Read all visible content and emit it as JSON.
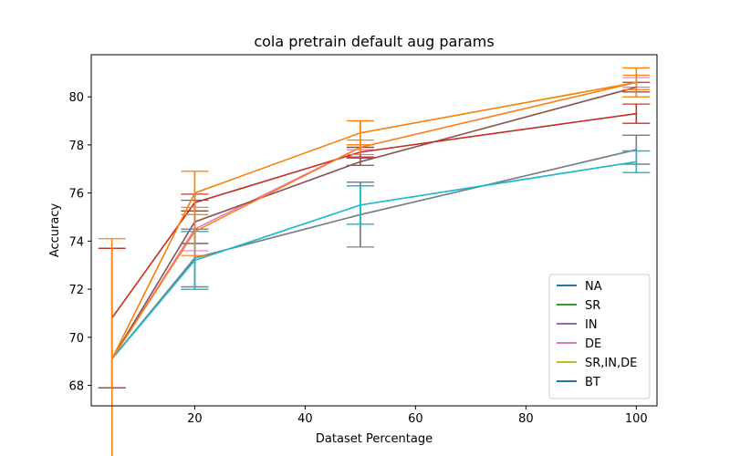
{
  "chart_data": {
    "type": "line",
    "title": "cola pretrain default aug params",
    "xlabel": "Dataset Percentage",
    "ylabel": "Accuracy",
    "xlim": [
      1.25,
      103.75
    ],
    "ylim": [
      67.15,
      81.75
    ],
    "xticks": [
      20,
      40,
      60,
      80,
      100
    ],
    "yticks": [
      68,
      70,
      72,
      74,
      76,
      78,
      80
    ],
    "legend_position": "lower-right",
    "grid": false,
    "x": [
      5,
      20,
      50,
      100
    ],
    "series": [
      {
        "name": "NA",
        "color": "#1f77b4",
        "legend": true,
        "values": [
          69.1,
          73.2,
          75.5,
          77.3
        ],
        "err": [
          0,
          1.2,
          0.8,
          0.45
        ]
      },
      {
        "name": "SR",
        "color": "#2ca02c",
        "legend": true,
        "values": [
          70.8,
          75.6,
          77.7,
          79.3
        ],
        "err": [
          2.9,
          0.35,
          0.2,
          0.4
        ]
      },
      {
        "name": "IN",
        "color": "#9467bd",
        "legend": true,
        "values": [
          69.1,
          74.8,
          77.3,
          80.4
        ],
        "err": [
          0,
          0.9,
          0.15,
          0.2
        ]
      },
      {
        "name": "DE",
        "color": "#e377c2",
        "legend": true,
        "values": [
          69.1,
          74.5,
          77.9,
          80.6
        ],
        "err": [
          0,
          0.9,
          0.1,
          0.2
        ]
      },
      {
        "name": "SR,IN,DE",
        "color": "#bcbd22",
        "legend": true,
        "values": [
          69.1,
          76.0,
          78.5,
          80.6
        ],
        "err": [
          0,
          0.9,
          0.5,
          0.6
        ]
      },
      {
        "name": "BT",
        "color": "#1f77b4",
        "legend": true,
        "values": [
          69.1,
          73.3,
          75.1,
          77.8
        ],
        "err": [
          0,
          1.2,
          1.35,
          0.6
        ]
      },
      {
        "name": "",
        "color": "#8c564b",
        "legend": false,
        "values": [
          69.1,
          74.8,
          77.3,
          80.4
        ],
        "err": [
          0,
          0.9,
          0.15,
          0.2
        ]
      },
      {
        "name": "",
        "color": "#7f7f7f",
        "legend": false,
        "values": [
          69.1,
          73.3,
          75.1,
          77.8
        ],
        "err": [
          0,
          1.2,
          1.35,
          0.6
        ]
      },
      {
        "name": "",
        "color": "#17becf",
        "legend": false,
        "values": [
          69.1,
          73.2,
          75.5,
          77.3
        ],
        "err": [
          0,
          1.2,
          0.8,
          0.45
        ]
      },
      {
        "name": "",
        "color": "#d62728",
        "legend": false,
        "values": [
          70.8,
          75.6,
          77.7,
          79.3
        ],
        "err": [
          2.9,
          0.35,
          0.2,
          0.4
        ]
      },
      {
        "name": "",
        "color": "#ff7f0e",
        "legend": false,
        "values": [
          69.1,
          76.0,
          78.5,
          80.6
        ],
        "err": [
          5.0,
          0.9,
          0.5,
          0.6
        ]
      },
      {
        "name": "",
        "color": "#ff7f0e",
        "legend": false,
        "values": [
          69.1,
          74.4,
          77.9,
          80.6
        ],
        "err": [
          0,
          1.0,
          0.3,
          0.3
        ]
      }
    ]
  }
}
